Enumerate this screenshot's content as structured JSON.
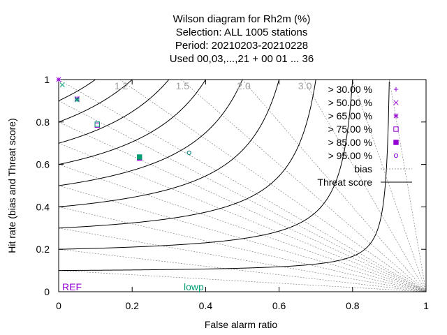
{
  "chart_data": {
    "type": "scatter",
    "title_lines": [
      "Wilson diagram  for Rh2m (%)",
      "Selection: ALL   1005 stations",
      "Period: 20210203-20210228",
      "Used  00,03,...,21  + 00 01 ... 36"
    ],
    "xlabel": "False alarm ratio",
    "ylabel": "Hit rate (bias and Threat score)",
    "xlim": [
      0,
      1
    ],
    "ylim": [
      0,
      1
    ],
    "x_ticks": [
      "0",
      "0.2",
      "0.4",
      "0.6",
      "0.8",
      "1"
    ],
    "y_ticks": [
      "0",
      "0.2",
      "0.4",
      "0.6",
      "0.8",
      "1"
    ],
    "x_tick_values": [
      0,
      0.2,
      0.4,
      0.6,
      0.8,
      1
    ],
    "y_tick_values": [
      0,
      0.2,
      0.4,
      0.6,
      0.8,
      1
    ],
    "bias_lines": [
      0.1,
      0.2,
      0.3,
      0.4,
      0.5,
      0.6,
      0.7,
      0.8,
      0.9,
      1.0,
      1.2,
      1.5,
      2.0,
      3.0,
      5.0,
      10.0
    ],
    "bias_labels": [
      {
        "value": 1.2,
        "text": "1.2"
      },
      {
        "value": 1.5,
        "text": "1.5"
      },
      {
        "value": 2.0,
        "text": "2.0"
      },
      {
        "value": 3.0,
        "text": "3.0"
      }
    ],
    "threat_score_lines": [
      0.1,
      0.2,
      0.3,
      0.4,
      0.5,
      0.6,
      0.7,
      0.8,
      0.9
    ],
    "series": [
      {
        "name": "> 30.00 %",
        "marker": "plus",
        "color": "#9400d3",
        "points": [
          [
            0.0,
            1.0
          ]
        ]
      },
      {
        "name": "> 50.00 %",
        "marker": "x",
        "color": "#9400d3",
        "points": [
          [
            0.0,
            1.0
          ],
          [
            0.05,
            0.905
          ]
        ]
      },
      {
        "name": "> 65.00 %",
        "marker": "star",
        "color": "#9400d3",
        "points": [
          [
            0.05,
            0.91
          ]
        ]
      },
      {
        "name": "> 75.00 %",
        "marker": "open-square",
        "color": "#9400d3",
        "points": [
          [
            0.105,
            0.785
          ]
        ]
      },
      {
        "name": "> 85.00 %",
        "marker": "filled-square",
        "color": "#9400d3",
        "points": [
          [
            0.22,
            0.63
          ]
        ]
      },
      {
        "name": "> 95.00 %",
        "marker": "open-circle",
        "color": "#9400d3",
        "points": [
          [
            0.355,
            0.655
          ]
        ]
      }
    ],
    "overlay_series": {
      "color": "#009e73",
      "points": [
        {
          "marker": "x",
          "xy": [
            0.01,
            0.975
          ]
        },
        {
          "marker": "x",
          "xy": [
            0.05,
            0.905
          ]
        },
        {
          "marker": "star",
          "xy": [
            0.05,
            0.905
          ]
        },
        {
          "marker": "open-square",
          "xy": [
            0.105,
            0.79
          ]
        },
        {
          "marker": "filled-square",
          "xy": [
            0.22,
            0.635
          ]
        },
        {
          "marker": "open-circle",
          "xy": [
            0.355,
            0.655
          ]
        }
      ]
    },
    "legend": {
      "placement": "top-right",
      "bias_label": "bias",
      "threat_label": "Threat score"
    },
    "corner_labels": [
      {
        "text": "REF",
        "color": "#9400d3"
      },
      {
        "text": "lowp",
        "color": "#009e73"
      }
    ],
    "grid": false
  }
}
